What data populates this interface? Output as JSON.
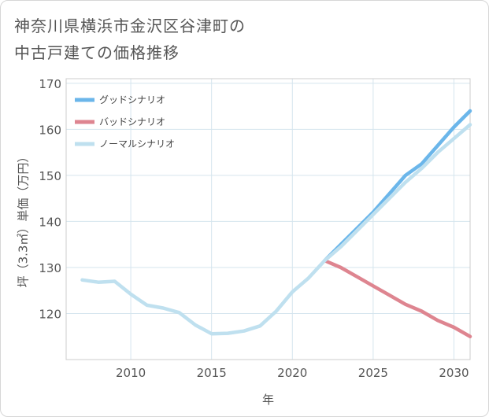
{
  "title_lines": [
    "神奈川県横浜市金沢区谷津町の",
    "中古戸建ての価格推移"
  ],
  "chart_data": {
    "type": "line",
    "xlabel": "年",
    "ylabel": "坪（3.3㎡）単価（万円）",
    "xlim": [
      2006,
      2031
    ],
    "ylim": [
      110,
      171
    ],
    "xticks": [
      2010,
      2015,
      2020,
      2025,
      2030
    ],
    "yticks": [
      120,
      130,
      140,
      150,
      160,
      170
    ],
    "grid": true,
    "legend_position": "top-left",
    "series": [
      {
        "name": "グッドシナリオ",
        "color": "#6bb6ea",
        "x": [
          2022,
          2023,
          2024,
          2025,
          2026,
          2027,
          2028,
          2029,
          2030,
          2031
        ],
        "y": [
          131.5,
          135.0,
          138.5,
          142.0,
          146.0,
          150.0,
          152.5,
          156.5,
          160.5,
          164.0
        ]
      },
      {
        "name": "バッドシナリオ",
        "color": "#de8590",
        "x": [
          2022,
          2023,
          2024,
          2025,
          2026,
          2027,
          2028,
          2029,
          2030,
          2031
        ],
        "y": [
          131.5,
          130.0,
          128.0,
          126.0,
          124.0,
          122.0,
          120.5,
          118.5,
          117.0,
          115.0
        ]
      },
      {
        "name": "ノーマルシナリオ",
        "color": "#bfe0ef",
        "x": [
          2007,
          2008,
          2009,
          2010,
          2011,
          2012,
          2013,
          2014,
          2015,
          2016,
          2017,
          2018,
          2019,
          2020,
          2021,
          2022,
          2023,
          2024,
          2025,
          2026,
          2027,
          2028,
          2029,
          2030,
          2031
        ],
        "y": [
          127.3,
          126.8,
          127.0,
          124.2,
          121.8,
          121.2,
          120.2,
          117.5,
          115.6,
          115.7,
          116.2,
          117.3,
          120.5,
          124.7,
          127.7,
          131.5,
          134.5,
          138.0,
          141.5,
          145.0,
          148.5,
          151.5,
          155.0,
          158.0,
          161.0
        ]
      }
    ]
  }
}
